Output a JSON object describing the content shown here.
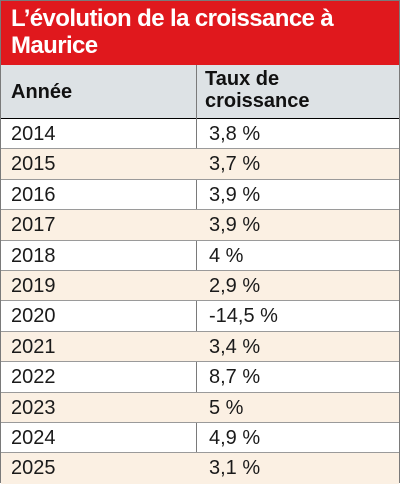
{
  "chart_data": {
    "type": "table",
    "title": "L’évolution de la croissance à Maurice",
    "columns": [
      "Année",
      "Taux de croissance"
    ],
    "rows": [
      {
        "year": "2014",
        "rate": "3,8 %"
      },
      {
        "year": "2015",
        "rate": "3,7 %"
      },
      {
        "year": "2016",
        "rate": "3,9 %"
      },
      {
        "year": "2017",
        "rate": "3,9 %"
      },
      {
        "year": "2018",
        "rate": "4 %"
      },
      {
        "year": "2019",
        "rate": "2,9 %"
      },
      {
        "year": "2020",
        "rate": "-14,5 %"
      },
      {
        "year": "2021",
        "rate": "3,4 %"
      },
      {
        "year": "2022",
        "rate": "8,7 %"
      },
      {
        "year": "2023",
        "rate": "5 %"
      },
      {
        "year": "2024",
        "rate": "4,9 %"
      },
      {
        "year": "2025",
        "rate": "3,1 %"
      }
    ]
  },
  "colors": {
    "title_bg": "#e0181d",
    "header_bg": "#dde2e5",
    "alt_row_bg": "#fbf0e3"
  }
}
